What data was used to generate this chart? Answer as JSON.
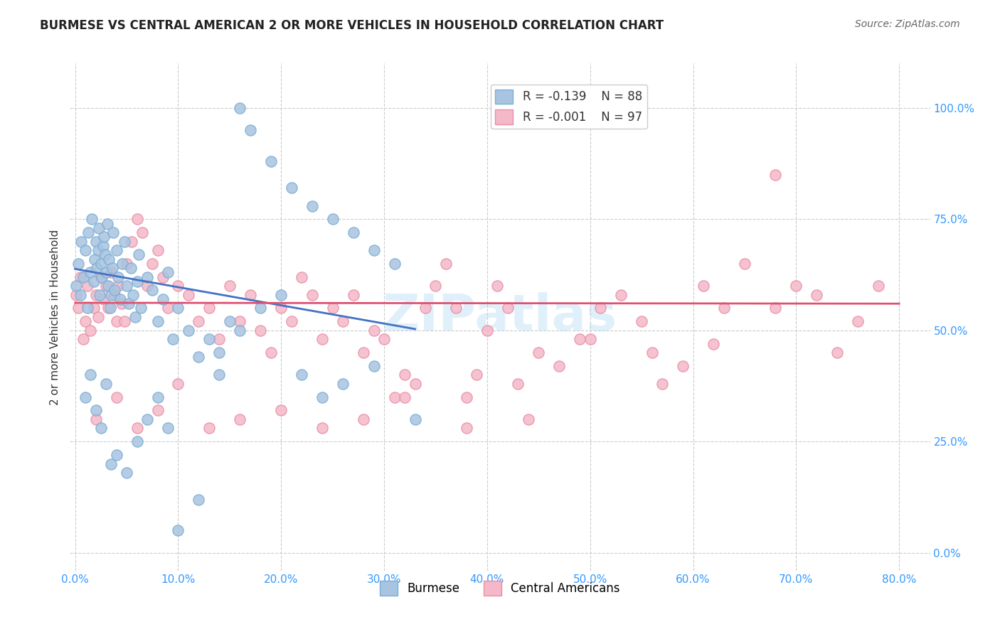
{
  "title": "BURMESE VS CENTRAL AMERICAN 2 OR MORE VEHICLES IN HOUSEHOLD CORRELATION CHART",
  "source": "Source: ZipAtlas.com",
  "xlabel_ticks": [
    "0.0%",
    "10.0%",
    "20.0%",
    "30.0%",
    "40.0%",
    "50.0%",
    "60.0%",
    "70.0%",
    "80.0%"
  ],
  "ylabel_ticks": [
    "0.0%",
    "25.0%",
    "50.0%",
    "75.0%",
    "100.0%"
  ],
  "ylabel_label": "2 or more Vehicles in Household",
  "watermark": "ZIPatlas",
  "legend_entries": [
    {
      "label": "Burmese",
      "R": "-0.139",
      "N": "88",
      "color": "#a8c4e0"
    },
    {
      "label": "Central Americans",
      "R": "-0.001",
      "N": "97",
      "color": "#f4b8c8"
    }
  ],
  "burmese_color": "#a8c4e0",
  "burmese_edge": "#7bafd4",
  "central_color": "#f4b8c8",
  "central_edge": "#e88fa8",
  "trend_blue": "#4472c4",
  "trend_red": "#e05070",
  "axis_color": "#3399ff",
  "title_color": "#222222",
  "grid_color": "#cccccc",
  "background": "#ffffff",
  "burmese_x": [
    0.001,
    0.003,
    0.005,
    0.006,
    0.008,
    0.01,
    0.012,
    0.013,
    0.015,
    0.016,
    0.018,
    0.019,
    0.02,
    0.021,
    0.022,
    0.023,
    0.024,
    0.025,
    0.026,
    0.027,
    0.028,
    0.029,
    0.03,
    0.031,
    0.032,
    0.033,
    0.034,
    0.035,
    0.036,
    0.037,
    0.038,
    0.04,
    0.042,
    0.044,
    0.046,
    0.048,
    0.05,
    0.052,
    0.054,
    0.056,
    0.058,
    0.06,
    0.062,
    0.064,
    0.07,
    0.075,
    0.08,
    0.085,
    0.09,
    0.095,
    0.1,
    0.11,
    0.12,
    0.13,
    0.14,
    0.15,
    0.16,
    0.17,
    0.19,
    0.21,
    0.23,
    0.25,
    0.27,
    0.29,
    0.31,
    0.33,
    0.01,
    0.015,
    0.02,
    0.025,
    0.03,
    0.035,
    0.04,
    0.05,
    0.06,
    0.07,
    0.08,
    0.09,
    0.1,
    0.12,
    0.14,
    0.16,
    0.18,
    0.2,
    0.22,
    0.24,
    0.26,
    0.29
  ],
  "burmese_y": [
    0.6,
    0.65,
    0.58,
    0.7,
    0.62,
    0.68,
    0.55,
    0.72,
    0.63,
    0.75,
    0.61,
    0.66,
    0.7,
    0.64,
    0.68,
    0.73,
    0.58,
    0.65,
    0.62,
    0.69,
    0.71,
    0.67,
    0.63,
    0.74,
    0.6,
    0.66,
    0.55,
    0.58,
    0.64,
    0.72,
    0.59,
    0.68,
    0.62,
    0.57,
    0.65,
    0.7,
    0.6,
    0.56,
    0.64,
    0.58,
    0.53,
    0.61,
    0.67,
    0.55,
    0.62,
    0.59,
    0.52,
    0.57,
    0.63,
    0.48,
    0.55,
    0.5,
    0.44,
    0.48,
    0.4,
    0.52,
    1.0,
    0.95,
    0.88,
    0.82,
    0.78,
    0.75,
    0.72,
    0.68,
    0.65,
    0.3,
    0.35,
    0.4,
    0.32,
    0.28,
    0.38,
    0.2,
    0.22,
    0.18,
    0.25,
    0.3,
    0.35,
    0.28,
    0.05,
    0.12,
    0.45,
    0.5,
    0.55,
    0.58,
    0.4,
    0.35,
    0.38,
    0.42
  ],
  "central_x": [
    0.001,
    0.003,
    0.005,
    0.008,
    0.01,
    0.012,
    0.015,
    0.018,
    0.02,
    0.022,
    0.025,
    0.028,
    0.03,
    0.032,
    0.035,
    0.038,
    0.04,
    0.042,
    0.045,
    0.048,
    0.05,
    0.055,
    0.06,
    0.065,
    0.07,
    0.075,
    0.08,
    0.085,
    0.09,
    0.1,
    0.11,
    0.12,
    0.13,
    0.14,
    0.15,
    0.16,
    0.17,
    0.18,
    0.19,
    0.2,
    0.21,
    0.22,
    0.23,
    0.24,
    0.25,
    0.26,
    0.27,
    0.28,
    0.29,
    0.3,
    0.31,
    0.32,
    0.33,
    0.34,
    0.35,
    0.36,
    0.37,
    0.38,
    0.39,
    0.4,
    0.41,
    0.42,
    0.43,
    0.45,
    0.47,
    0.49,
    0.51,
    0.53,
    0.55,
    0.57,
    0.59,
    0.61,
    0.63,
    0.65,
    0.68,
    0.7,
    0.72,
    0.74,
    0.76,
    0.78,
    0.02,
    0.04,
    0.06,
    0.08,
    0.1,
    0.13,
    0.16,
    0.2,
    0.24,
    0.28,
    0.32,
    0.38,
    0.44,
    0.5,
    0.56,
    0.62,
    0.68
  ],
  "central_y": [
    0.58,
    0.55,
    0.62,
    0.48,
    0.52,
    0.6,
    0.5,
    0.55,
    0.58,
    0.53,
    0.62,
    0.57,
    0.6,
    0.55,
    0.63,
    0.58,
    0.52,
    0.6,
    0.56,
    0.52,
    0.65,
    0.7,
    0.75,
    0.72,
    0.6,
    0.65,
    0.68,
    0.62,
    0.55,
    0.6,
    0.58,
    0.52,
    0.55,
    0.48,
    0.6,
    0.52,
    0.58,
    0.5,
    0.45,
    0.55,
    0.52,
    0.62,
    0.58,
    0.48,
    0.55,
    0.52,
    0.58,
    0.45,
    0.5,
    0.48,
    0.35,
    0.4,
    0.38,
    0.55,
    0.6,
    0.65,
    0.55,
    0.35,
    0.4,
    0.5,
    0.6,
    0.55,
    0.38,
    0.45,
    0.42,
    0.48,
    0.55,
    0.58,
    0.52,
    0.38,
    0.42,
    0.6,
    0.55,
    0.65,
    0.55,
    0.6,
    0.58,
    0.45,
    0.52,
    0.6,
    0.3,
    0.35,
    0.28,
    0.32,
    0.38,
    0.28,
    0.3,
    0.32,
    0.28,
    0.3,
    0.35,
    0.28,
    0.3,
    0.48,
    0.45,
    0.47,
    0.85
  ],
  "burmese_trend_x": [
    0.0,
    0.33
  ],
  "burmese_trend_y": [
    0.638,
    0.503
  ],
  "central_trend_x": [
    0.0,
    0.8
  ],
  "central_trend_y": [
    0.562,
    0.56
  ],
  "xmin": -0.005,
  "xmax": 0.83,
  "ymin": -0.04,
  "ymax": 1.1,
  "xtick_positions": [
    0.0,
    0.1,
    0.2,
    0.3,
    0.4,
    0.5,
    0.6,
    0.7,
    0.8
  ],
  "ytick_positions": [
    0.0,
    0.25,
    0.5,
    0.75,
    1.0
  ]
}
